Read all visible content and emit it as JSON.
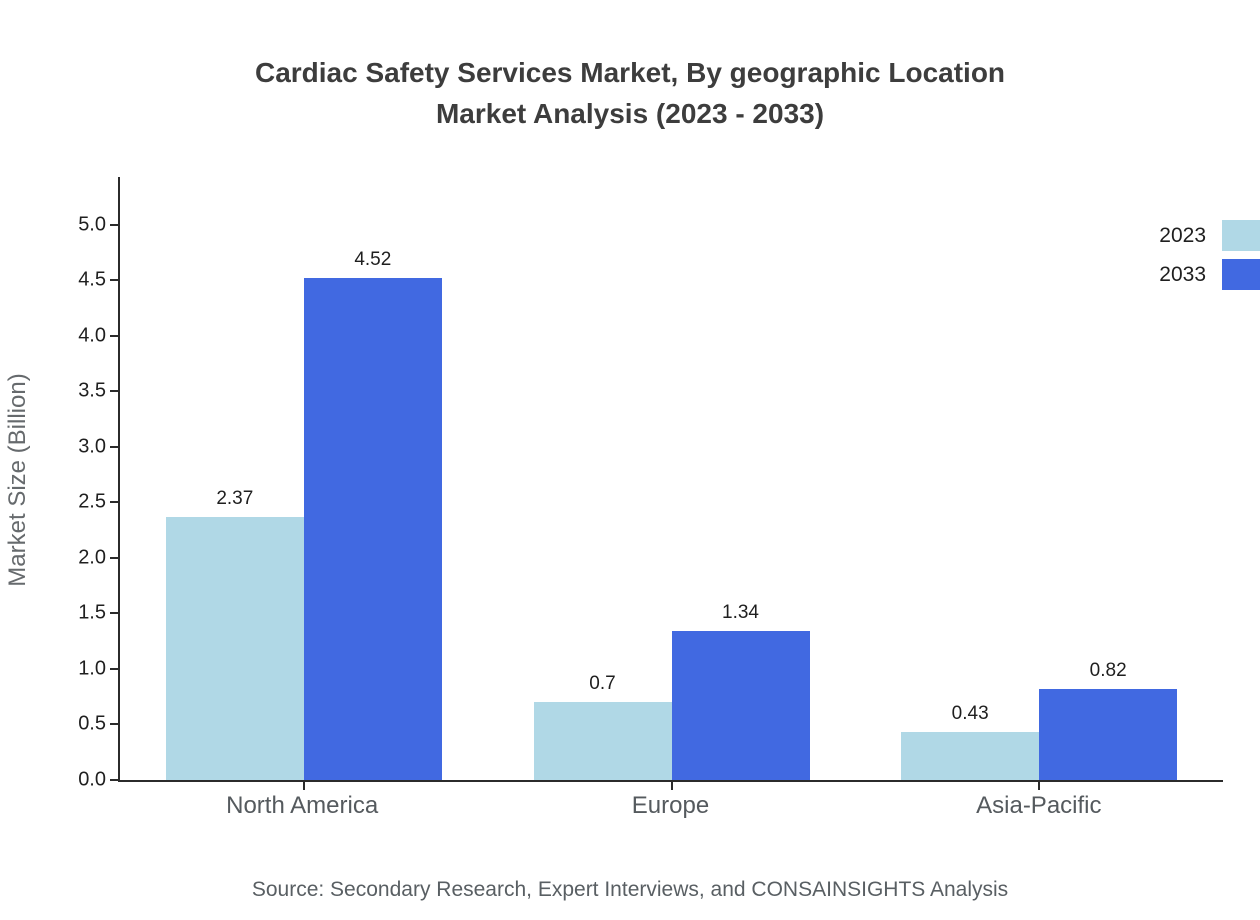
{
  "page": {
    "title_line1": "Cardiac Safety Services Market, By geographic Location",
    "title_line2": "Market Analysis (2023 - 2033)",
    "source": "Source: Secondary Research, Expert Interviews, and CONSAINSIGHTS Analysis"
  },
  "chart_data": {
    "type": "bar",
    "title": "Cardiac Safety Services Market, By geographic Location Market Analysis (2023 - 2033)",
    "categories": [
      "North America",
      "Europe",
      "Asia-Pacific"
    ],
    "series": [
      {
        "name": "2023",
        "color": "#b0d8e6",
        "values": [
          2.37,
          0.7,
          0.43
        ],
        "labels": [
          "2.37",
          "0.7",
          "0.43"
        ]
      },
      {
        "name": "2033",
        "color": "#4169e1",
        "values": [
          4.52,
          1.34,
          0.82
        ],
        "labels": [
          "4.52",
          "1.34",
          "0.82"
        ]
      }
    ],
    "xlabel": "",
    "ylabel": "Market Size (Billion)",
    "ylim": [
      0,
      5.0
    ],
    "ytick_step": 0.5,
    "grid": false,
    "legend_position": "top-right"
  }
}
